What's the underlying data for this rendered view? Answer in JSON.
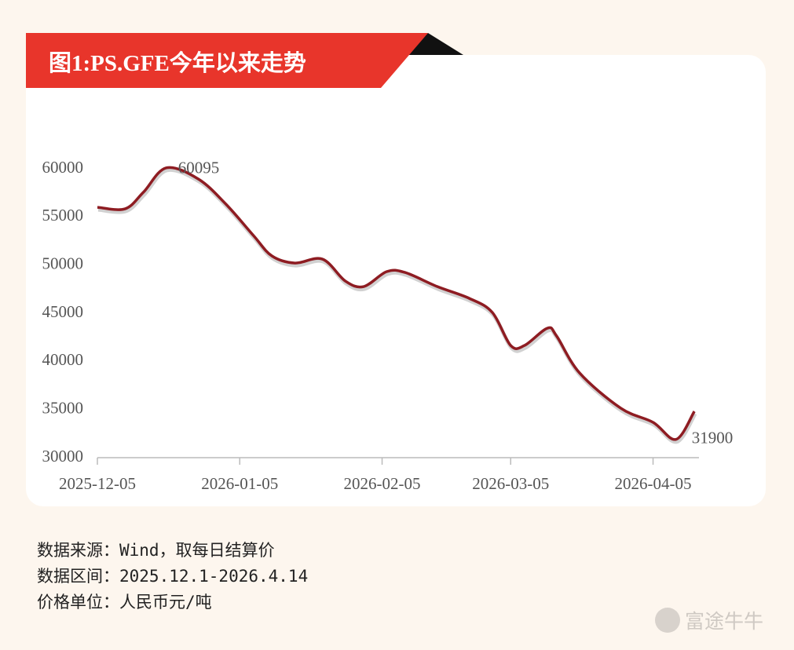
{
  "header": {
    "title": "图1:PS.GFE今年以来走势"
  },
  "chart_data": {
    "type": "line",
    "x": [
      "2025-12-05",
      "2025-12-11",
      "2025-12-15",
      "2025-12-20",
      "2025-12-27",
      "2026-01-02",
      "2026-01-08",
      "2026-01-12",
      "2026-01-17",
      "2026-01-23",
      "2026-01-28",
      "2026-02-01",
      "2026-02-06",
      "2026-02-10",
      "2026-02-17",
      "2026-02-24",
      "2026-03-01",
      "2026-03-05",
      "2026-03-08",
      "2026-03-13",
      "2026-03-15",
      "2026-03-20",
      "2026-03-29",
      "2026-04-05",
      "2026-04-10",
      "2026-04-14"
    ],
    "series": [
      {
        "name": "PS.GFE",
        "color": "#8e1c22",
        "values": [
          56000,
          55840,
          57550,
          60095,
          58930,
          56320,
          53060,
          50950,
          50210,
          50620,
          48340,
          47770,
          49320,
          49230,
          47770,
          46540,
          45080,
          41650,
          41650,
          43450,
          42630,
          38800,
          35130,
          33670,
          31900,
          34810
        ]
      }
    ],
    "annotations": [
      {
        "x": "2025-12-20",
        "y": 60095
      },
      {
        "x": "2026-04-10",
        "y": 31900
      }
    ],
    "xlim": [
      "2025-12-05",
      "2026-04-15"
    ],
    "xticks": [
      "2025-12-05",
      "2026-01-05",
      "2026-02-05",
      "2026-03-05",
      "2026-04-05"
    ],
    "ylim": [
      30000,
      60000
    ],
    "yticks": [
      30000,
      35000,
      40000,
      45000,
      50000,
      55000,
      60000
    ],
    "grid": false
  },
  "footer": {
    "source": "数据来源：Wind，取每日结算价",
    "range": "数据区间：2025.12.1-2026.4.14",
    "unit": "价格单位：人民币元/吨"
  },
  "watermark": "富途牛牛"
}
